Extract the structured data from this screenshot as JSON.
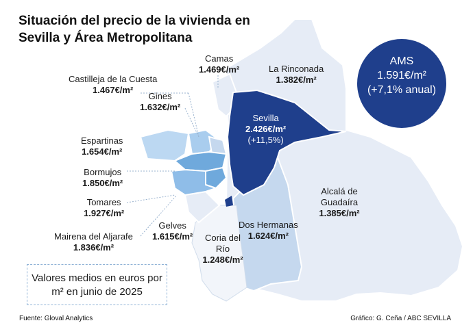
{
  "title": "Situación del precio de la vivienda en Sevilla y Área Metropolitana",
  "municipalities": [
    {
      "name": "Camas",
      "value": "1.469€/m²"
    },
    {
      "name": "La Rinconada",
      "value": "1.382€/m²"
    },
    {
      "name": "Castilleja de la Cuesta",
      "value": "1.467€/m²"
    },
    {
      "name": "Gines",
      "value": "1.632€/m²"
    },
    {
      "name": "Sevilla",
      "value": "2.426€/m²",
      "change": "(+11,5%)"
    },
    {
      "name": "Espartinas",
      "value": "1.654€/m²"
    },
    {
      "name": "Bormujos",
      "value": "1.850€/m²"
    },
    {
      "name": "Tomares",
      "value": "1.927€/m²"
    },
    {
      "name": "Alcalá de Guadaíra",
      "value": "1.385€/m²"
    },
    {
      "name": "Dos Hermanas",
      "value": "1.624€/m²"
    },
    {
      "name": "Mairena del Aljarafe",
      "value": "1.836€/m²"
    },
    {
      "name": "Gelves",
      "value": "1.615€/m²"
    },
    {
      "name": "Coria del Río",
      "value": "1.248€/m²"
    }
  ],
  "ams": {
    "label": "AMS",
    "value": "1.591€/m²",
    "change": "(+7,1% anual)"
  },
  "note": "Valores medios en euros por m² en junio de 2025",
  "source": "Fuente: Gloval Analytics",
  "credit": "Gráfico: G. Ceña / ABC SEVILLA",
  "colors": {
    "light": "#e6ecf6",
    "mid": "#c5d8ee",
    "aljarafe": "#a9cdee",
    "dark": "#1f3f8c"
  }
}
